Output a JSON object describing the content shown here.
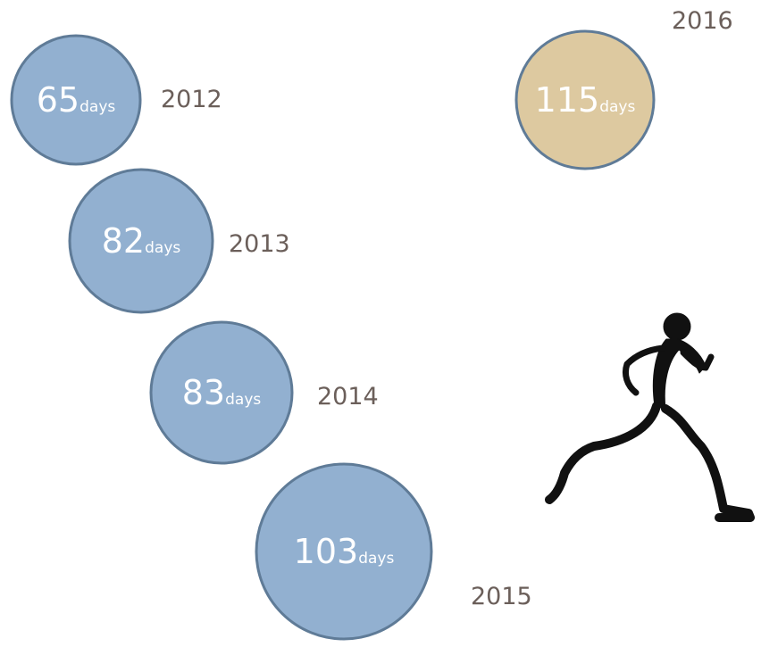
{
  "unit": "days",
  "items": [
    {
      "year": "2012",
      "value": "65"
    },
    {
      "year": "2013",
      "value": "82"
    },
    {
      "year": "2014",
      "value": "83"
    },
    {
      "year": "2015",
      "value": "103"
    },
    {
      "year": "2016",
      "value": "115"
    }
  ]
}
